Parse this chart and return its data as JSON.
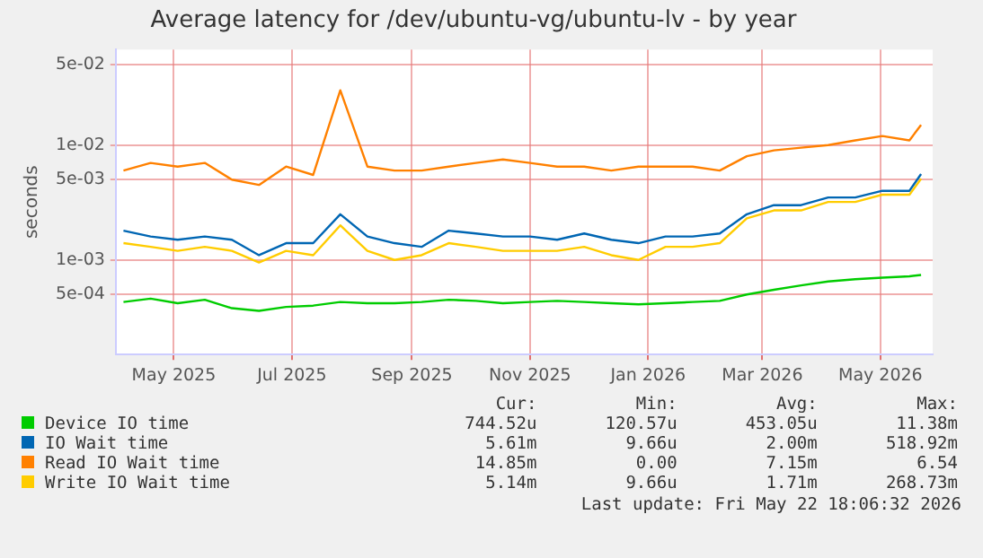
{
  "chart_data": {
    "type": "line",
    "title": "Average latency for /dev/ubuntu-vg/ubuntu-lv - by year",
    "ylabel": "seconds",
    "x": [
      "2025-04-05",
      "2025-04-19",
      "2025-05-03",
      "2025-05-17",
      "2025-05-31",
      "2025-06-14",
      "2025-06-28",
      "2025-07-12",
      "2025-07-26",
      "2025-08-09",
      "2025-08-23",
      "2025-09-06",
      "2025-09-20",
      "2025-10-04",
      "2025-10-18",
      "2025-11-01",
      "2025-11-15",
      "2025-11-29",
      "2025-12-13",
      "2025-12-27",
      "2026-01-10",
      "2026-01-24",
      "2026-02-07",
      "2026-02-21",
      "2026-03-07",
      "2026-03-21",
      "2026-04-04",
      "2026-04-18",
      "2026-05-02",
      "2026-05-16",
      "2026-05-22"
    ],
    "series": [
      {
        "name": "Device IO time",
        "color": "#00cc00",
        "values": [
          0.00043,
          0.00046,
          0.00042,
          0.00045,
          0.00038,
          0.00036,
          0.00039,
          0.0004,
          0.00043,
          0.00042,
          0.00042,
          0.00043,
          0.00045,
          0.00044,
          0.00042,
          0.00043,
          0.00044,
          0.00043,
          0.00042,
          0.00041,
          0.00042,
          0.00043,
          0.00044,
          0.0005,
          0.00055,
          0.0006,
          0.00065,
          0.00068,
          0.0007,
          0.00072,
          0.00074
        ]
      },
      {
        "name": "IO Wait time",
        "color": "#0066b3",
        "values": [
          0.0018,
          0.0016,
          0.0015,
          0.0016,
          0.0015,
          0.0011,
          0.0014,
          0.0014,
          0.0025,
          0.0016,
          0.0014,
          0.0013,
          0.0018,
          0.0017,
          0.0016,
          0.0016,
          0.0015,
          0.0017,
          0.0015,
          0.0014,
          0.0016,
          0.0016,
          0.0017,
          0.0025,
          0.003,
          0.003,
          0.0035,
          0.0035,
          0.004,
          0.004,
          0.0056
        ]
      },
      {
        "name": "Read IO Wait time",
        "color": "#ff8000",
        "values": [
          0.006,
          0.007,
          0.0065,
          0.007,
          0.005,
          0.0045,
          0.0065,
          0.0055,
          0.03,
          0.0065,
          0.006,
          0.006,
          0.0065,
          0.007,
          0.0075,
          0.007,
          0.0065,
          0.0065,
          0.006,
          0.0065,
          0.0065,
          0.0065,
          0.006,
          0.008,
          0.009,
          0.0095,
          0.01,
          0.011,
          0.012,
          0.011,
          0.015
        ]
      },
      {
        "name": "Write IO Wait time",
        "color": "#ffcc00",
        "values": [
          0.0014,
          0.0013,
          0.0012,
          0.0013,
          0.0012,
          0.00095,
          0.0012,
          0.0011,
          0.002,
          0.0012,
          0.001,
          0.0011,
          0.0014,
          0.0013,
          0.0012,
          0.0012,
          0.0012,
          0.0013,
          0.0011,
          0.001,
          0.0013,
          0.0013,
          0.0014,
          0.0023,
          0.0027,
          0.0027,
          0.0032,
          0.0032,
          0.0037,
          0.0037,
          0.0051
        ]
      }
    ],
    "xlim": [
      "2025-04-01",
      "2026-05-28"
    ],
    "xticks": [
      {
        "value": "2025-05-01",
        "label": "May 2025"
      },
      {
        "value": "2025-07-01",
        "label": "Jul 2025"
      },
      {
        "value": "2025-09-01",
        "label": "Sep 2025"
      },
      {
        "value": "2025-11-01",
        "label": "Nov 2025"
      },
      {
        "value": "2026-01-01",
        "label": "Jan 2026"
      },
      {
        "value": "2026-03-01",
        "label": "Mar 2026"
      },
      {
        "value": "2026-05-01",
        "label": "May 2026"
      }
    ],
    "ylim": [
      0.00015,
      0.068
    ],
    "yticks": [
      {
        "value": 0.0005,
        "label": "5e-04"
      },
      {
        "value": 0.001,
        "label": "1e-03"
      },
      {
        "value": 0.005,
        "label": "5e-03"
      },
      {
        "value": 0.01,
        "label": "1e-02"
      },
      {
        "value": 0.05,
        "label": "5e-02"
      }
    ],
    "log": "y",
    "grid": true,
    "legend": "bottom",
    "marker": "none",
    "line_style": "solid",
    "annotations": [
      "Cur:",
      "Min:",
      "Avg:",
      "Max:",
      "744.52u",
      "120.57u",
      "453.05u",
      "11.38m",
      "5.61m",
      "9.66u",
      "2.00m",
      "518.92m",
      "14.85m",
      "0.00",
      "7.15m",
      "6.54",
      "5.14m",
      "9.66u",
      "1.71m",
      "268.73m",
      "Last update: Fri May 22 18:06:32 2026"
    ]
  }
}
